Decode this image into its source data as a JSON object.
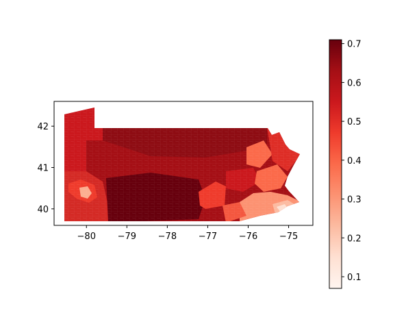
{
  "map": {
    "title": "",
    "xaxis": {
      "range": [
        -80.8,
        -74.4
      ],
      "ticks": [
        -80,
        -79,
        -78,
        -77,
        -76,
        -75
      ],
      "tick_labels": [
        "−80",
        "−79",
        "−78",
        "−77",
        "−76",
        "−75"
      ]
    },
    "yaxis": {
      "range": [
        39.6,
        42.6
      ],
      "ticks": [
        40,
        41,
        42
      ],
      "tick_labels": [
        "40",
        "41",
        "42"
      ]
    },
    "colormap": "Reds",
    "colormap_stops": [
      "#fff5f0",
      "#fee0d2",
      "#fcbba1",
      "#fc9272",
      "#fb6a4a",
      "#ef3b2c",
      "#cb181d",
      "#a50f15",
      "#67000d"
    ]
  },
  "colorbar": {
    "range": [
      0.07,
      0.71
    ],
    "ticks": [
      0.1,
      0.2,
      0.3,
      0.4,
      0.5,
      0.6,
      0.7
    ],
    "tick_labels": [
      "0.1",
      "0.2",
      "0.3",
      "0.4",
      "0.5",
      "0.6",
      "0.7"
    ]
  }
}
